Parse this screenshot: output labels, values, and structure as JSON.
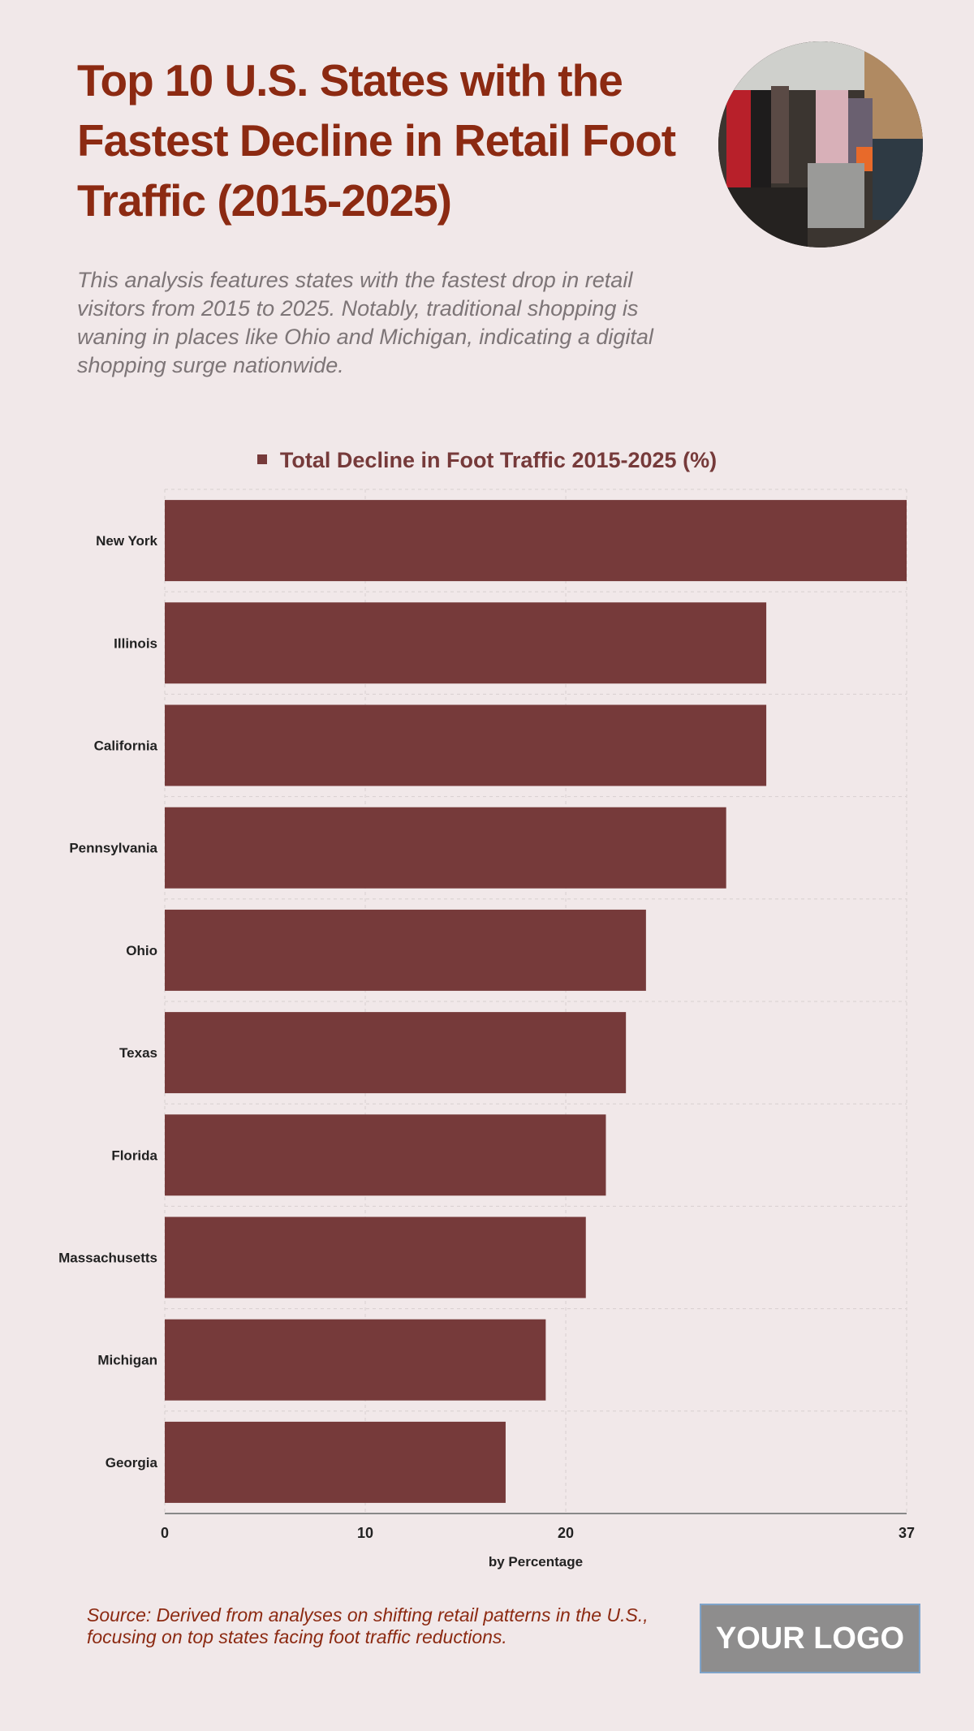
{
  "header": {
    "title": "Top 10 U.S. States with the Fastest Decline in Retail Foot Traffic (2015-2025)",
    "subtitle": "This analysis features states with the fastest drop in retail visitors from 2015 to 2025. Notably, traditional shopping is waning in places like Ohio and Michigan, indicating a digital shopping surge nationwide."
  },
  "footer": {
    "source": "Source: Derived from analyses on shifting retail patterns in the U.S., focusing on top states facing foot traffic reductions.",
    "logo": "YOUR LOGO"
  },
  "chart_data": {
    "type": "bar",
    "orientation": "horizontal",
    "categories": [
      "New York",
      "Illinois",
      "California",
      "Pennsylvania",
      "Ohio",
      "Texas",
      "Florida",
      "Massachusetts",
      "Michigan",
      "Georgia"
    ],
    "series": [
      {
        "name": "Total Decline in Foot Traffic 2015-2025 (%)",
        "values": [
          37,
          30,
          30,
          28,
          24,
          23,
          22,
          21,
          19,
          17
        ]
      }
    ],
    "xlabel": "by Percentage",
    "ylabel": "",
    "xlim": [
      0,
      37
    ],
    "xticks": [
      0,
      10,
      20,
      37
    ],
    "grid": true,
    "legend_position": "top",
    "colors": {
      "bar": "#763a3a",
      "title": "#8c2a12",
      "background": "#f1e8e9"
    }
  }
}
